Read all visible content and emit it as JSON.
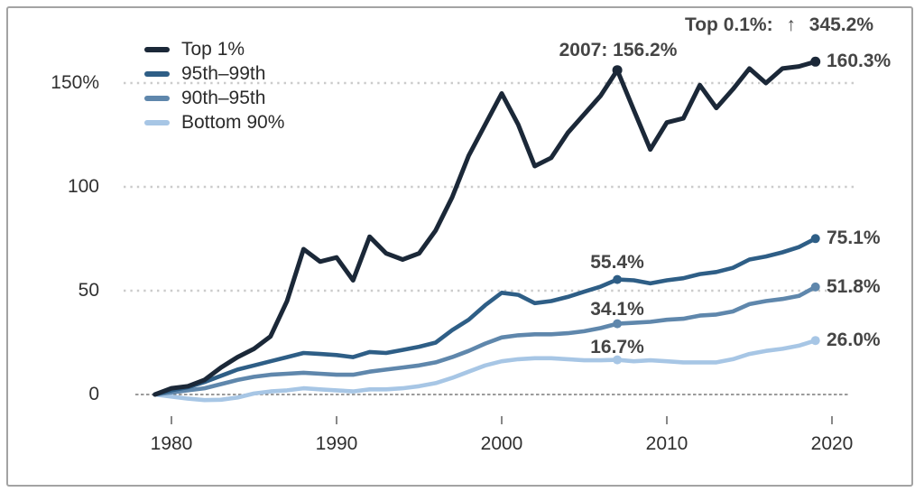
{
  "frame": {
    "border_color": "#a3a3a3",
    "background": "#ffffff"
  },
  "legend": {
    "items": [
      {
        "label": "Top 1%"
      },
      {
        "label": "95th–99th"
      },
      {
        "label": "90th–95th"
      },
      {
        "label": "Bottom 90%"
      }
    ]
  },
  "annotations": {
    "top_right_prefix": "Top 0.1%:",
    "top_right_arrow": "↑",
    "top_right_value": "345.2%",
    "peak_2007": "2007: 156.2%",
    "end_labels": [
      "160.3%",
      "75.1%",
      "51.8%",
      "26.0%"
    ],
    "mid_2007_labels": [
      "55.4%",
      "34.1%",
      "16.7%"
    ]
  },
  "chart_data": {
    "type": "line",
    "title": "",
    "xlabel": "",
    "ylabel": "",
    "x": [
      1979,
      1980,
      1981,
      1982,
      1983,
      1984,
      1985,
      1986,
      1987,
      1988,
      1989,
      1990,
      1991,
      1992,
      1993,
      1994,
      1995,
      1996,
      1997,
      1998,
      1999,
      2000,
      2001,
      2002,
      2003,
      2004,
      2005,
      2006,
      2007,
      2008,
      2009,
      2010,
      2011,
      2012,
      2013,
      2014,
      2015,
      2016,
      2017,
      2018,
      2019
    ],
    "series": [
      {
        "name": "Top 1%",
        "color": "#1b2838",
        "values": [
          0,
          3,
          4,
          7,
          13,
          18,
          22,
          28,
          45,
          70,
          64,
          66,
          55,
          76,
          68,
          65,
          68,
          79,
          95,
          115,
          130,
          145,
          130,
          110,
          114,
          126,
          135,
          144,
          156.2,
          137,
          118,
          131,
          133,
          149,
          138,
          147,
          157,
          150,
          157,
          158,
          160.3
        ]
      },
      {
        "name": "95th–99th",
        "color": "#2e5e86",
        "values": [
          0,
          2,
          3.5,
          6,
          9,
          12,
          14,
          16,
          18,
          20,
          19.5,
          19,
          18,
          20.5,
          20,
          21.5,
          23,
          25,
          31,
          36,
          43,
          49,
          48,
          44,
          45,
          47,
          49.5,
          52,
          55.4,
          55,
          53.5,
          55,
          56,
          58,
          59,
          61,
          65,
          66.5,
          68.5,
          71,
          75.1
        ]
      },
      {
        "name": "90th–95th",
        "color": "#5f87ac",
        "values": [
          0,
          1,
          2,
          3,
          5,
          7,
          8.5,
          9.5,
          10,
          10.5,
          10,
          9.5,
          9.5,
          11,
          12,
          13,
          14,
          15.5,
          18,
          21,
          24.5,
          27.5,
          28.5,
          29,
          29,
          29.5,
          30.5,
          32,
          34.1,
          34.5,
          35,
          36,
          36.5,
          38,
          38.5,
          40,
          43.5,
          45,
          46,
          47.5,
          51.8
        ]
      },
      {
        "name": "Bottom 90%",
        "color": "#a7c6e5",
        "values": [
          0,
          -1,
          -2,
          -2.7,
          -2.5,
          -1.5,
          0.5,
          1.5,
          2,
          3,
          2.5,
          2,
          1.5,
          2.5,
          2.5,
          3,
          4,
          5.5,
          8,
          11,
          14,
          16,
          17,
          17.5,
          17.5,
          17,
          16.5,
          16.5,
          16.7,
          16,
          16.5,
          16,
          15.5,
          15.5,
          15.5,
          17,
          19.5,
          21,
          22,
          23.5,
          26
        ]
      }
    ],
    "yticks": [
      0,
      50,
      100,
      150
    ],
    "ytick_labels": [
      "0",
      "50",
      "100",
      "150%"
    ],
    "xticks": [
      1980,
      1990,
      2000,
      2010,
      2020
    ],
    "xtick_labels": [
      "1980",
      "1990",
      "2000",
      "2010",
      "2020"
    ],
    "ylim": [
      -5,
      175
    ],
    "xlim": [
      1979,
      2020
    ],
    "marker_years": [
      2007,
      2019
    ],
    "grid": "horizontal-dotted",
    "zero_line": "dashed",
    "legend_position": "top-left"
  }
}
